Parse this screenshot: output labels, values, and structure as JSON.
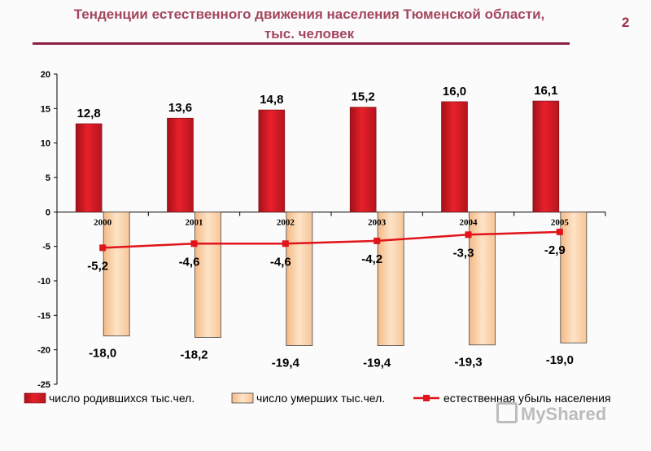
{
  "page": {
    "title_line1": "Тенденции естественного движения населения Тюменской области,",
    "title_line2": "тыс. человек",
    "page_number": "2",
    "watermark": "MyShared"
  },
  "colors": {
    "births": "#e8202a",
    "deaths": "#fde3c7",
    "natural": "#e0141a",
    "title": "#a3465e",
    "rule": "#8c1f45"
  },
  "chart_data": {
    "type": "bar",
    "categories": [
      "2000",
      "2001",
      "2002",
      "2003",
      "2004",
      "2005"
    ],
    "series": [
      {
        "name": "число родившихся тыс.чел.",
        "kind": "bar",
        "values": [
          12.8,
          13.6,
          14.8,
          15.2,
          16.0,
          16.1
        ],
        "labels": [
          "12,8",
          "13,6",
          "14,8",
          "15,2",
          "16,0",
          "16,1"
        ]
      },
      {
        "name": "число умерших тыс.чел.",
        "kind": "bar",
        "values": [
          -18.0,
          -18.2,
          -19.4,
          -19.4,
          -19.3,
          -19.0
        ],
        "labels": [
          "-18,0",
          "-18,2",
          "-19,4",
          "-19,4",
          "-19,3",
          "-19,0"
        ]
      },
      {
        "name": "естественная убыль населения",
        "kind": "line",
        "values": [
          -5.2,
          -4.6,
          -4.6,
          -4.2,
          -3.3,
          -2.9
        ],
        "labels": [
          "-5,2",
          "-4,6",
          "-4,6",
          "-4,2",
          "-3,3",
          "-2,9"
        ]
      }
    ],
    "yticks": [
      "20",
      "15",
      "10",
      "5",
      "0",
      "-5",
      "-10",
      "-15",
      "-20",
      "-25"
    ],
    "ylim": [
      -25,
      20
    ],
    "xlabel": "",
    "ylabel": "",
    "grid": false,
    "legend_position": "bottom"
  }
}
